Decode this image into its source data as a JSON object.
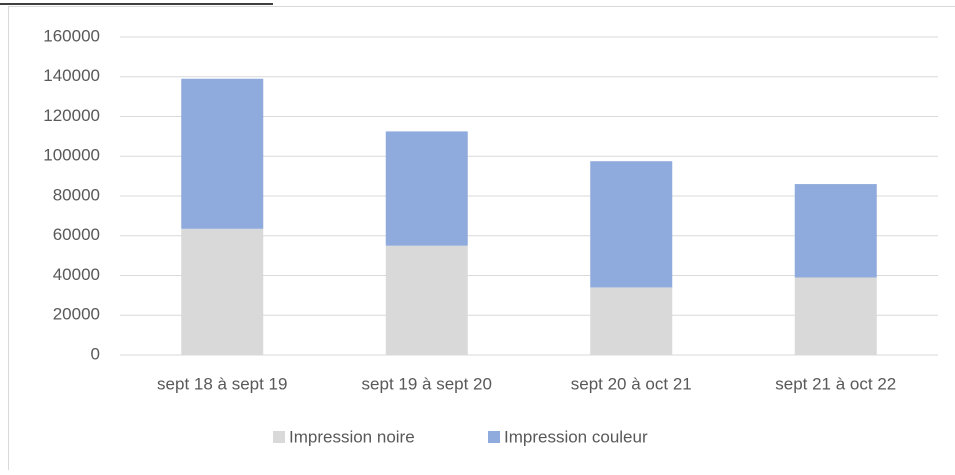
{
  "chart_data": {
    "type": "stacked_bar",
    "categories": [
      "sept 18 à sept 19",
      "sept 19 à sept 20",
      "sept 20 à oct 21",
      "sept 21 à oct 22"
    ],
    "series": [
      {
        "name": "Impression noire",
        "color": "#d9d9d9",
        "values": [
          63500,
          55000,
          34000,
          39000
        ]
      },
      {
        "name": "Impression couleur",
        "color": "#8faadc",
        "values": [
          75500,
          57500,
          63500,
          47000
        ]
      }
    ],
    "ylim": [
      0,
      160000
    ],
    "yticks": [
      0,
      20000,
      40000,
      60000,
      80000,
      100000,
      120000,
      140000,
      160000
    ],
    "grid": true,
    "legend": "bottom"
  }
}
